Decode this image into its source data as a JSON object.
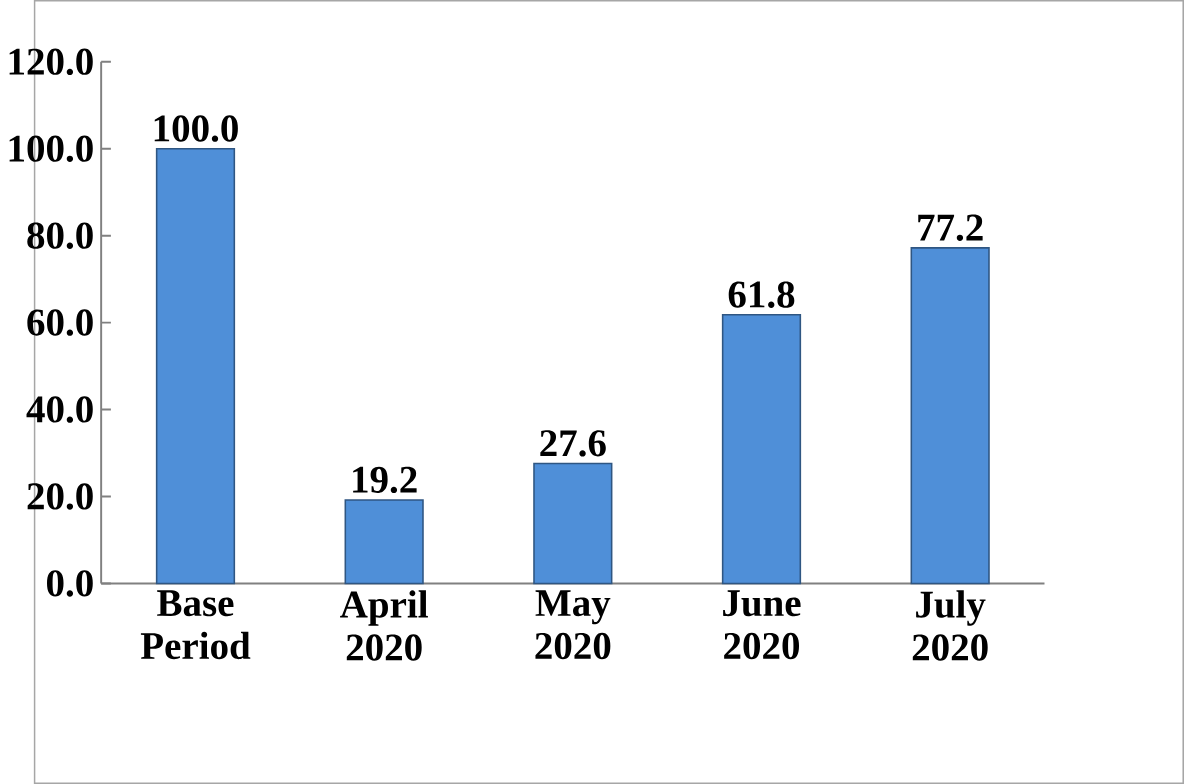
{
  "chart_data": {
    "type": "bar",
    "categories": [
      "Base Period",
      "April 2020",
      "May 2020",
      "June 2020",
      "July 2020"
    ],
    "values": [
      100.0,
      19.2,
      27.6,
      61.8,
      77.2
    ],
    "value_labels": [
      "100.0",
      "19.2",
      "27.6",
      "61.8",
      "77.2"
    ],
    "color": "#4f8fd8",
    "ylim": [
      0,
      120
    ],
    "yticks": [
      {
        "value": 0,
        "label": "0.0"
      },
      {
        "value": 20,
        "label": "20.0"
      },
      {
        "value": 40,
        "label": "40.0"
      },
      {
        "value": 60,
        "label": "60.0"
      },
      {
        "value": 80,
        "label": "80.0"
      },
      {
        "value": 100,
        "label": "100.0"
      },
      {
        "value": 120,
        "label": "120.0"
      }
    ]
  }
}
